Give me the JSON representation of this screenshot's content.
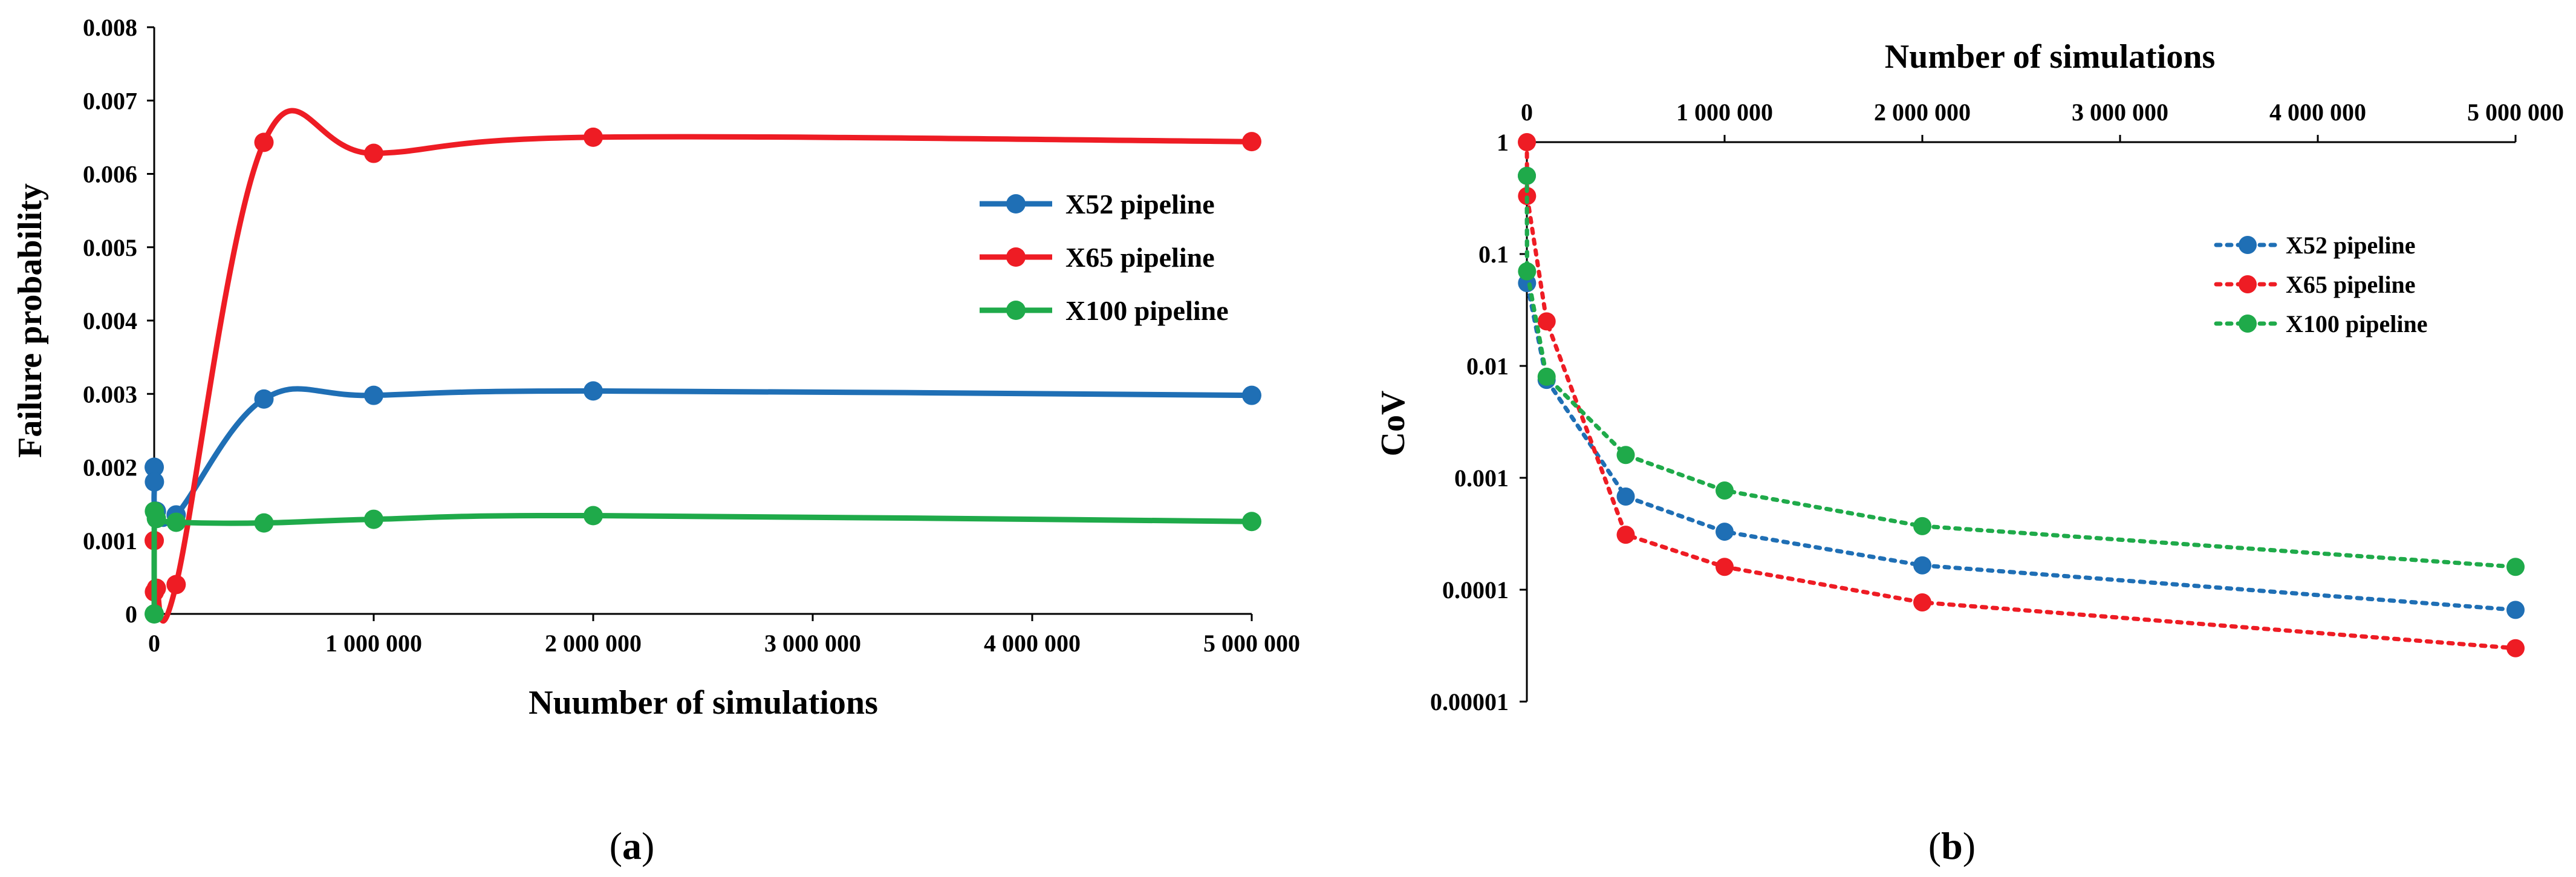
{
  "chart_data": [
    {
      "type": "line",
      "panel": "a",
      "caption": {
        "open": "(",
        "letter": "a",
        "close": ")"
      },
      "xlabel": "Nuumber of simulations",
      "ylabel": "Failure probability",
      "xlim": [
        0,
        5000000
      ],
      "ylim": [
        0,
        0.008
      ],
      "xticks": [
        0,
        1000000,
        2000000,
        3000000,
        4000000,
        5000000
      ],
      "xtick_labels": [
        "0",
        "1 000 000",
        "2 000 000",
        "3 000 000",
        "4 000 000",
        "5 000 000"
      ],
      "yticks": [
        0,
        0.001,
        0.002,
        0.003,
        0.004,
        0.005,
        0.006,
        0.007,
        0.008
      ],
      "ytick_labels": [
        "0",
        "0.001",
        "0.002",
        "0.003",
        "0.004",
        "0.005",
        "0.006",
        "0.007",
        "0.008"
      ],
      "legend_position": "right",
      "series": [
        {
          "name": "X52 pipeline",
          "color": "#1f6fb5",
          "x": [
            100,
            1000,
            10000,
            100000,
            500000,
            1000000,
            2000000,
            5000000
          ],
          "y": [
            0.002,
            0.0018,
            0.0014,
            0.00135,
            0.00293,
            0.00298,
            0.00304,
            0.00298
          ]
        },
        {
          "name": "X65 pipeline",
          "color": "#ee1c24",
          "x": [
            100,
            1000,
            10000,
            100000,
            500000,
            1000000,
            2000000,
            5000000
          ],
          "y": [
            0.001,
            0.0003,
            0.00035,
            0.0004,
            0.00643,
            0.00628,
            0.0065,
            0.00644
          ]
        },
        {
          "name": "X100 pipeline",
          "color": "#1faa4a",
          "x": [
            100,
            1000,
            10000,
            100000,
            500000,
            1000000,
            2000000,
            5000000
          ],
          "y": [
            0.0,
            0.0014,
            0.0013,
            0.00125,
            0.00124,
            0.00129,
            0.00134,
            0.00126
          ]
        }
      ]
    },
    {
      "type": "line",
      "panel": "b",
      "caption": {
        "open": "(",
        "letter": "b",
        "close": ")"
      },
      "xlabel": "Number of simulations",
      "ylabel": "CoV",
      "xscale": "linear",
      "yscale": "log",
      "xaxis_position": "top",
      "xlim": [
        0,
        5000000
      ],
      "ylim": [
        1e-05,
        1
      ],
      "xticks": [
        0,
        1000000,
        2000000,
        3000000,
        4000000,
        5000000
      ],
      "xtick_labels": [
        "0",
        "1 000 000",
        "2 000 000",
        "3 000 000",
        "4 000 000",
        "5 000 000"
      ],
      "yticks": [
        1,
        0.1,
        0.01,
        0.001,
        0.0001,
        1e-05
      ],
      "ytick_labels": [
        "1",
        "0.1",
        "0.01",
        "0.001",
        "0.0001",
        "0.00001"
      ],
      "line_style": "dotted",
      "legend_position": "right",
      "series": [
        {
          "name": "X52 pipeline",
          "color": "#1f6fb5",
          "x": [
            100,
            1000,
            100000,
            500000,
            1000000,
            2000000,
            5000000
          ],
          "y": [
            0.5,
            0.055,
            0.0075,
            0.00068,
            0.00033,
            0.000165,
            6.6e-05
          ]
        },
        {
          "name": "X65 pipeline",
          "color": "#ee1c24",
          "x": [
            100,
            1000,
            100000,
            500000,
            1000000,
            2000000,
            5000000
          ],
          "y": [
            1.0,
            0.33,
            0.025,
            0.00031,
            0.00016,
            7.7e-05,
            3e-05
          ]
        },
        {
          "name": "X100 pipeline",
          "color": "#1faa4a",
          "x": [
            100,
            1000,
            100000,
            500000,
            1000000,
            2000000,
            5000000
          ],
          "y": [
            0.5,
            0.07,
            0.008,
            0.0016,
            0.00077,
            0.00037,
            0.00016
          ]
        }
      ]
    }
  ]
}
